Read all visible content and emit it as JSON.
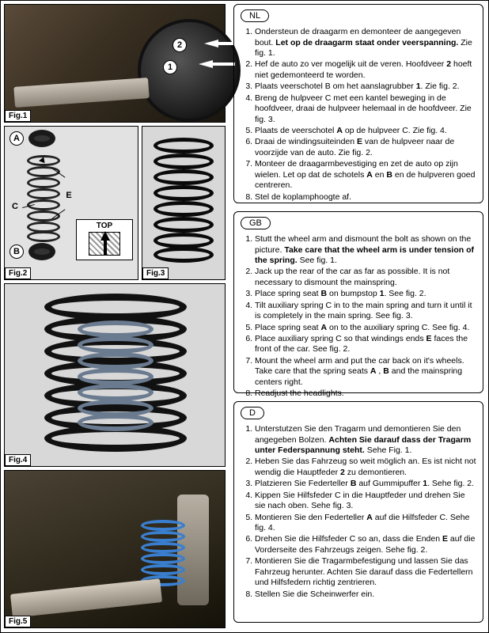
{
  "figures": {
    "fig1": {
      "label": "Fig.1",
      "callouts": {
        "n1": "1",
        "n2": "2"
      }
    },
    "fig2": {
      "label": "Fig.2",
      "callouts": {
        "A": "A",
        "B": "B",
        "C": "C",
        "E": "E"
      },
      "top_label": "TOP"
    },
    "fig3": {
      "label": "Fig.3"
    },
    "fig4": {
      "label": "Fig.4"
    },
    "fig5": {
      "label": "Fig.5"
    }
  },
  "instructions": {
    "nl": {
      "lang_label": "NL",
      "steps": [
        "Ondersteun de draagarm en demonteer de aangegeven bout. <b>Let op de draagarm staat onder veerspanning.</b> Zie fig. 1.",
        "Hef de auto zo ver mogelijk uit de veren. Hoofdveer <b>2</b> hoeft niet gedemonteerd te worden.",
        "Plaats veerschotel B om het aanslagrubber <b>1</b>. Zie fig. 2.",
        "Breng de hulpveer C met een kantel beweging in de hoofdveer, draai de hulpveer helemaal in de hoofdveer. Zie fig. 3.",
        "Plaats de veerschotel <b>A</b> op de hulpveer C. Zie fig. 4.",
        "Draai de windingsuiteinden <b>E</b> van de hulpveer naar de voorzijde van de auto. Zie fig. 2.",
        "Monteer de draagarmbevestiging en zet de auto op zijn wielen. Let op dat de schotels <b>A</b> en <b>B</b> en de hulpveren goed centreren.",
        "Stel de koplamphoogte af."
      ]
    },
    "gb": {
      "lang_label": "GB",
      "steps": [
        "Stutt the wheel arm and dismount the bolt as shown on the picture. <b>Take care that the wheel arm is under tension of the spring.</b> See fig. 1.",
        "Jack up the rear of the car as far as possible. It is not necessary to dismount  the mainspring.",
        "Place spring seat <b>B</b> on bumpstop <b>1</b>. See fig. 2.",
        "Tilt auxiliary spring C in to the main spring and turn it until it is completely in the main spring. See fig. 3.",
        "Place spring seat <b>A</b> on to the auxiliary spring C. See fig. 4.",
        "Place auxiliary spring C so that windings ends <b>E</b> faces the front of the car. See fig. 2.",
        "Mount the wheel arm and put the car back on it's wheels. Take care that the spring seats <b>A</b> , <b>B</b> and the mainspring centers right.",
        "Readjust the headlights."
      ]
    },
    "d": {
      "lang_label": "D",
      "steps": [
        "Unterstutzen Sie den Tragarm und demontieren Sie den angegeben Bolzen. <b>Achten Sie darauf dass der Tragarm unter Federspannung steht.</b> Sehe Fig. 1.",
        "Heben Sie das Fahrzeug so weit möglich an. Es ist nicht not wendig die Hauptfeder <b>2</b> zu demontieren.",
        "Platzieren Sie Federteller <b>B</b> auf Gummipuffer <b>1</b>. Sehe fig. 2.",
        "Kippen Sie Hilfsfeder C in die Hauptfeder und drehen Sie sie nach oben. Sehe fig. 3.",
        "Montieren Sie den Federteller <b>A</b> auf die Hilfsfeder C. Sehe fig. 4.",
        "Drehen Sie die Hilfsfeder C so an, dass die Enden <b>E</b> auf die Vorderseite des Fahrzeugs zeigen. Sehe fig. 2.",
        "Montieren Sie die Tragarmbefestigung und lassen Sie das Fahrzeug herunter. Achten Sie darauf dass die Federtellern und Hilfsfedern richtig zentrieren.",
        "Stellen Sie die Scheinwerfer ein."
      ]
    }
  },
  "colors": {
    "border": "#000000",
    "page_bg": "#ffffff",
    "photo_bg": "#d8d8d8",
    "spring_black": "#111111",
    "spring_blue": "#3a7fcf",
    "inner_spring_grey": "#6a7a8f"
  }
}
